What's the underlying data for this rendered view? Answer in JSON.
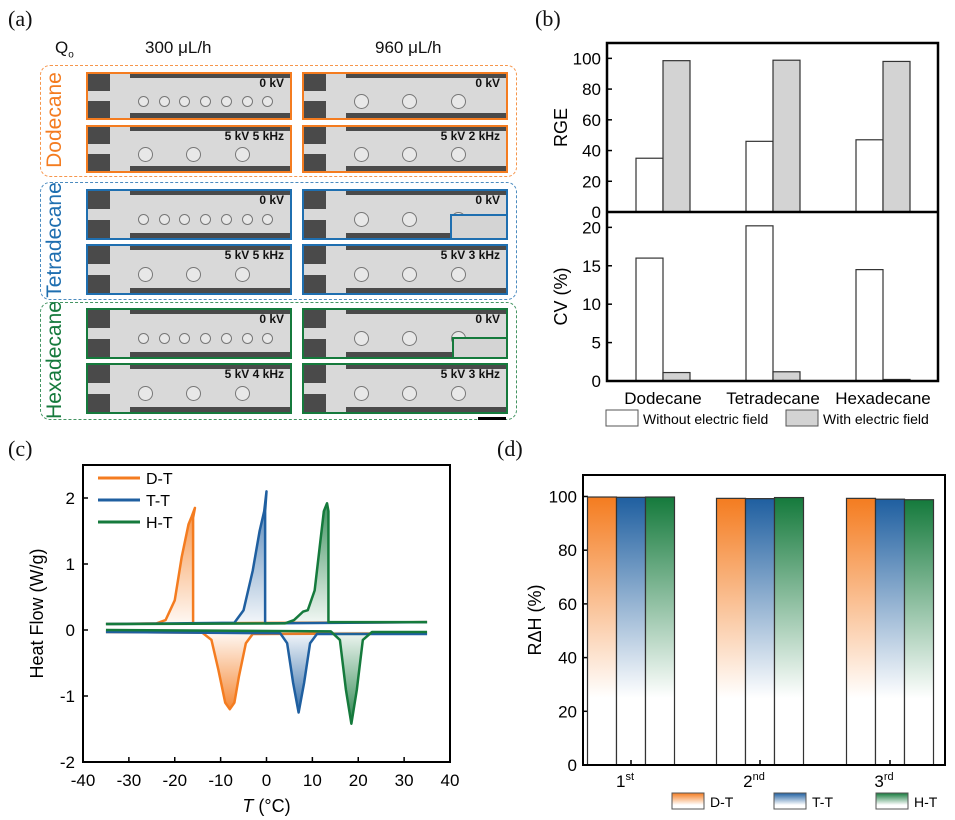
{
  "panel_labels": {
    "a": "(a)",
    "b": "(b)",
    "c": "(c)",
    "d": "(d)"
  },
  "panel_a": {
    "flow_label": "Q",
    "flow_subscript": "o",
    "columns": [
      "300 μL/h",
      "960 μL/h"
    ],
    "colors": {
      "Dodecane": "#f47c20",
      "Tetradecane": "#1f6fb0",
      "Hexadecane": "#157a3c"
    },
    "groups": [
      {
        "name": "Dodecane",
        "images": [
          [
            "0 kV",
            "0 kV"
          ],
          [
            "5 kV  5 kHz",
            "5 kV  2 kHz"
          ]
        ]
      },
      {
        "name": "Tetradecane",
        "images": [
          [
            "0 kV",
            "0 kV"
          ],
          [
            "5 kV  5 kHz",
            "5 kV  3 kHz"
          ]
        ]
      },
      {
        "name": "Hexadecane",
        "images": [
          [
            "0 kV",
            "0 kV"
          ],
          [
            "5 kV  4 kHz",
            "5 kV  3 kHz"
          ]
        ]
      }
    ]
  },
  "chart_data": [
    {
      "id": "b-top",
      "type": "bar",
      "ylabel": "RGE",
      "ylim": [
        0,
        110
      ],
      "yticks": [
        0,
        20,
        40,
        60,
        80,
        100
      ],
      "categories": [
        "Dodecane",
        "Tetradecane",
        "Hexadecane"
      ],
      "series": [
        {
          "name": "Without electric field",
          "color": "#ffffff",
          "values": [
            35,
            46,
            47
          ]
        },
        {
          "name": "With electric field",
          "color": "#d3d3d3",
          "values": [
            98.5,
            98.8,
            98
          ]
        }
      ]
    },
    {
      "id": "b-bottom",
      "type": "bar",
      "ylabel": "CV (%)",
      "ylim": [
        0,
        22
      ],
      "yticks": [
        0,
        5,
        10,
        15,
        20
      ],
      "categories": [
        "Dodecane",
        "Tetradecane",
        "Hexadecane"
      ],
      "series": [
        {
          "name": "Without electric field",
          "color": "#ffffff",
          "values": [
            16,
            20.2,
            14.5
          ]
        },
        {
          "name": "With electric field",
          "color": "#d3d3d3",
          "values": [
            1.1,
            1.2,
            0.2
          ]
        }
      ],
      "legend": [
        "Without electric field",
        "With electric field"
      ]
    },
    {
      "id": "c",
      "type": "line",
      "xlabel_italic": "T",
      "xlabel_unit": " (°C)",
      "ylabel": "Heat Flow (W/g)",
      "xlim": [
        -40,
        40
      ],
      "ylim": [
        -2,
        2.5
      ],
      "xticks": [
        -40,
        -30,
        -20,
        -10,
        0,
        10,
        20,
        30,
        40
      ],
      "yticks": [
        -2,
        -1,
        0,
        1,
        2
      ],
      "legend": "top-left",
      "series": [
        {
          "name": "D-T",
          "color": "#f47c20",
          "cooling": [
            [
              -35,
              0.09
            ],
            [
              -24,
              0.1
            ],
            [
              -22,
              0.15
            ],
            [
              -20,
              0.45
            ],
            [
              -18.5,
              1.1
            ],
            [
              -17,
              1.6
            ],
            [
              -16.3,
              1.72
            ],
            [
              -15.6,
              1.85
            ],
            [
              -16,
              1.7
            ],
            [
              -16,
              0.1
            ],
            [
              35,
              0.12
            ]
          ],
          "heating": [
            [
              -35,
              -0.03
            ],
            [
              -14,
              -0.04
            ],
            [
              -12,
              -0.15
            ],
            [
              -10.5,
              -0.6
            ],
            [
              -9,
              -1.1
            ],
            [
              -8,
              -1.2
            ],
            [
              -7,
              -1.1
            ],
            [
              -6,
              -0.7
            ],
            [
              -4.5,
              -0.2
            ],
            [
              -3,
              -0.06
            ],
            [
              35,
              -0.05
            ]
          ]
        },
        {
          "name": "T-T",
          "color": "#1f5fa0",
          "cooling": [
            [
              -35,
              0.09
            ],
            [
              -7,
              0.11
            ],
            [
              -5,
              0.3
            ],
            [
              -3,
              0.9
            ],
            [
              -1.5,
              1.5
            ],
            [
              -0.5,
              1.8
            ],
            [
              0,
              2.1
            ],
            [
              -0.3,
              1.8
            ],
            [
              -0.3,
              0.1
            ],
            [
              35,
              0.12
            ]
          ],
          "heating": [
            [
              -35,
              -0.03
            ],
            [
              3,
              -0.05
            ],
            [
              4.5,
              -0.2
            ],
            [
              5.8,
              -0.8
            ],
            [
              7,
              -1.25
            ],
            [
              8.2,
              -0.8
            ],
            [
              9.5,
              -0.2
            ],
            [
              11,
              -0.06
            ],
            [
              35,
              -0.06
            ]
          ]
        },
        {
          "name": "H-T",
          "color": "#157a3c",
          "cooling": [
            [
              -35,
              0.09
            ],
            [
              4,
              0.1
            ],
            [
              6,
              0.15
            ],
            [
              8,
              0.28
            ],
            [
              9,
              0.3
            ],
            [
              10.5,
              0.6
            ],
            [
              11.5,
              1.2
            ],
            [
              12.5,
              1.8
            ],
            [
              13.2,
              1.92
            ],
            [
              13.5,
              1.8
            ],
            [
              13.5,
              0.12
            ],
            [
              35,
              0.12
            ]
          ],
          "heating": [
            [
              -35,
              0.0
            ],
            [
              14,
              -0.02
            ],
            [
              16,
              -0.15
            ],
            [
              17.3,
              -0.9
            ],
            [
              18.5,
              -1.42
            ],
            [
              19.7,
              -0.9
            ],
            [
              21,
              -0.15
            ],
            [
              23,
              -0.03
            ],
            [
              35,
              -0.03
            ]
          ]
        }
      ]
    },
    {
      "id": "d",
      "type": "bar",
      "ylabel": "RΔH (%)",
      "ylim": [
        0,
        108
      ],
      "yticks": [
        0,
        20,
        40,
        60,
        80,
        100
      ],
      "categories": [
        "1",
        "2",
        "3"
      ],
      "category_superscripts": [
        "st",
        "nd",
        "rd"
      ],
      "series": [
        {
          "name": "D-T",
          "color": "#f47c20",
          "values": [
            99.8,
            99.3,
            99.3
          ]
        },
        {
          "name": "T-T",
          "color": "#1f5fa0",
          "values": [
            99.7,
            99.2,
            99.0
          ]
        },
        {
          "name": "H-T",
          "color": "#157a3c",
          "values": [
            99.8,
            99.6,
            98.8
          ]
        }
      ],
      "legend": "bottom-right"
    }
  ]
}
